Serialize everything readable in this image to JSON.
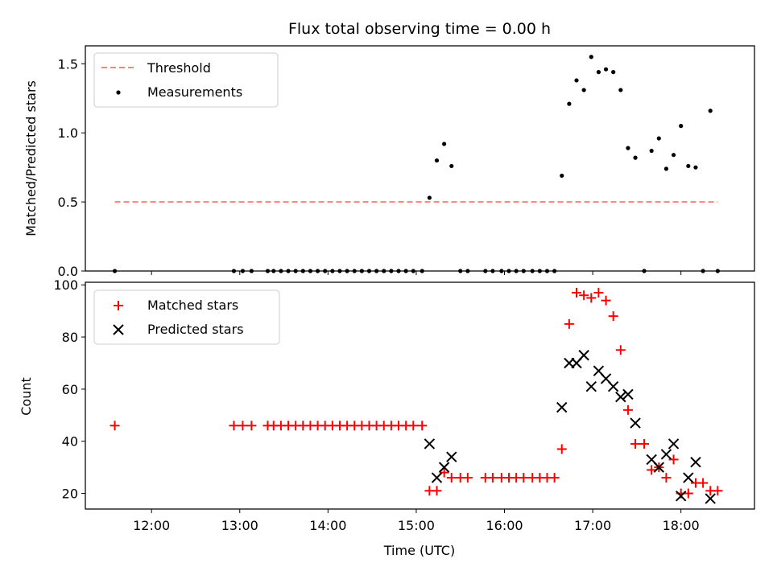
{
  "chart_data": [
    {
      "type": "scatter",
      "title": "Flux total observing time = 0.00 h",
      "xlabel": "",
      "ylabel": "Matched/Predicted stars",
      "x_unit": "hours (UTC)",
      "xlim": [
        "11:15",
        "18:50"
      ],
      "ylim": [
        0,
        1.63
      ],
      "xticks": [
        "12:00",
        "13:00",
        "14:00",
        "15:00",
        "16:00",
        "17:00",
        "18:00"
      ],
      "yticks": [
        "0.0",
        "0.5",
        "1.0",
        "1.5"
      ],
      "legend_position": "upper left",
      "threshold": {
        "name": "Threshold",
        "value": 0.5,
        "x_range": [
          "11:35",
          "18:25"
        ],
        "style": "dashed",
        "color": "#ff7f7f"
      },
      "series": [
        {
          "name": "Measurements",
          "color": "#000000",
          "marker": "dot",
          "points": [
            [
              "11:35",
              0.0
            ],
            [
              "12:56",
              0.0
            ],
            [
              "13:02",
              0.0
            ],
            [
              "13:08",
              0.0
            ],
            [
              "13:19",
              0.0
            ],
            [
              "13:23",
              0.0
            ],
            [
              "13:28",
              0.0
            ],
            [
              "13:33",
              0.0
            ],
            [
              "13:38",
              0.0
            ],
            [
              "13:43",
              0.0
            ],
            [
              "13:48",
              0.0
            ],
            [
              "13:53",
              0.0
            ],
            [
              "13:58",
              0.0
            ],
            [
              "14:03",
              0.0
            ],
            [
              "14:08",
              0.0
            ],
            [
              "14:13",
              0.0
            ],
            [
              "14:18",
              0.0
            ],
            [
              "14:23",
              0.0
            ],
            [
              "14:28",
              0.0
            ],
            [
              "14:33",
              0.0
            ],
            [
              "14:38",
              0.0
            ],
            [
              "14:43",
              0.0
            ],
            [
              "14:48",
              0.0
            ],
            [
              "14:53",
              0.0
            ],
            [
              "14:58",
              0.0
            ],
            [
              "15:04",
              0.0
            ],
            [
              "15:09",
              0.53
            ],
            [
              "15:14",
              0.8
            ],
            [
              "15:19",
              0.92
            ],
            [
              "15:24",
              0.76
            ],
            [
              "15:30",
              0.0
            ],
            [
              "15:35",
              0.0
            ],
            [
              "15:47",
              0.0
            ],
            [
              "15:52",
              0.0
            ],
            [
              "15:58",
              0.0
            ],
            [
              "16:03",
              0.0
            ],
            [
              "16:08",
              0.0
            ],
            [
              "16:13",
              0.0
            ],
            [
              "16:19",
              0.0
            ],
            [
              "16:24",
              0.0
            ],
            [
              "16:29",
              0.0
            ],
            [
              "16:34",
              0.0
            ],
            [
              "16:39",
              0.69
            ],
            [
              "16:44",
              1.21
            ],
            [
              "16:49",
              1.38
            ],
            [
              "16:54",
              1.31
            ],
            [
              "16:59",
              1.55
            ],
            [
              "17:04",
              1.44
            ],
            [
              "17:09",
              1.46
            ],
            [
              "17:14",
              1.44
            ],
            [
              "17:19",
              1.31
            ],
            [
              "17:24",
              0.89
            ],
            [
              "17:29",
              0.82
            ],
            [
              "17:35",
              0.0
            ],
            [
              "17:40",
              0.87
            ],
            [
              "17:45",
              0.96
            ],
            [
              "17:50",
              0.74
            ],
            [
              "17:55",
              0.84
            ],
            [
              "18:00",
              1.05
            ],
            [
              "18:05",
              0.76
            ],
            [
              "18:10",
              0.75
            ],
            [
              "18:15",
              0.0
            ],
            [
              "18:20",
              1.16
            ],
            [
              "18:25",
              0.0
            ]
          ]
        }
      ]
    },
    {
      "type": "scatter",
      "title": "",
      "xlabel": "Time (UTC)",
      "ylabel": "Count",
      "x_unit": "hours (UTC)",
      "xlim": [
        "11:15",
        "18:50"
      ],
      "ylim": [
        14,
        101
      ],
      "xticks": [
        "12:00",
        "13:00",
        "14:00",
        "15:00",
        "16:00",
        "17:00",
        "18:00"
      ],
      "yticks": [
        "20",
        "40",
        "60",
        "80",
        "100"
      ],
      "legend_position": "upper left",
      "series": [
        {
          "name": "Matched stars",
          "color": "#ff0000",
          "marker": "plus",
          "points": [
            [
              "11:35",
              46
            ],
            [
              "12:56",
              46
            ],
            [
              "13:02",
              46
            ],
            [
              "13:08",
              46
            ],
            [
              "13:19",
              46
            ],
            [
              "13:23",
              46
            ],
            [
              "13:28",
              46
            ],
            [
              "13:33",
              46
            ],
            [
              "13:38",
              46
            ],
            [
              "13:43",
              46
            ],
            [
              "13:48",
              46
            ],
            [
              "13:53",
              46
            ],
            [
              "13:58",
              46
            ],
            [
              "14:03",
              46
            ],
            [
              "14:08",
              46
            ],
            [
              "14:13",
              46
            ],
            [
              "14:18",
              46
            ],
            [
              "14:23",
              46
            ],
            [
              "14:28",
              46
            ],
            [
              "14:33",
              46
            ],
            [
              "14:38",
              46
            ],
            [
              "14:43",
              46
            ],
            [
              "14:48",
              46
            ],
            [
              "14:53",
              46
            ],
            [
              "14:58",
              46
            ],
            [
              "15:04",
              46
            ],
            [
              "15:09",
              21
            ],
            [
              "15:14",
              21
            ],
            [
              "15:19",
              28
            ],
            [
              "15:24",
              26
            ],
            [
              "15:30",
              26
            ],
            [
              "15:35",
              26
            ],
            [
              "15:47",
              26
            ],
            [
              "15:52",
              26
            ],
            [
              "15:58",
              26
            ],
            [
              "16:03",
              26
            ],
            [
              "16:08",
              26
            ],
            [
              "16:13",
              26
            ],
            [
              "16:19",
              26
            ],
            [
              "16:24",
              26
            ],
            [
              "16:29",
              26
            ],
            [
              "16:34",
              26
            ],
            [
              "16:39",
              37
            ],
            [
              "16:44",
              85
            ],
            [
              "16:49",
              97
            ],
            [
              "16:54",
              96
            ],
            [
              "16:59",
              95
            ],
            [
              "17:04",
              97
            ],
            [
              "17:09",
              94
            ],
            [
              "17:14",
              88
            ],
            [
              "17:19",
              75
            ],
            [
              "17:24",
              52
            ],
            [
              "17:29",
              39
            ],
            [
              "17:35",
              39
            ],
            [
              "17:40",
              29
            ],
            [
              "17:45",
              30
            ],
            [
              "17:50",
              26
            ],
            [
              "17:55",
              33
            ],
            [
              "18:00",
              20
            ],
            [
              "18:05",
              20
            ],
            [
              "18:10",
              24
            ],
            [
              "18:15",
              24
            ],
            [
              "18:20",
              21
            ],
            [
              "18:25",
              21
            ]
          ]
        },
        {
          "name": "Predicted stars",
          "color": "#000000",
          "marker": "x",
          "points": [
            [
              "15:09",
              39
            ],
            [
              "15:14",
              26
            ],
            [
              "15:19",
              30
            ],
            [
              "15:24",
              34
            ],
            [
              "16:39",
              53
            ],
            [
              "16:44",
              70
            ],
            [
              "16:49",
              70
            ],
            [
              "16:54",
              73
            ],
            [
              "16:59",
              61
            ],
            [
              "17:04",
              67
            ],
            [
              "17:09",
              64
            ],
            [
              "17:14",
              61
            ],
            [
              "17:19",
              57
            ],
            [
              "17:24",
              58
            ],
            [
              "17:29",
              47
            ],
            [
              "17:40",
              33
            ],
            [
              "17:45",
              30
            ],
            [
              "17:50",
              35
            ],
            [
              "17:55",
              39
            ],
            [
              "18:00",
              19
            ],
            [
              "18:05",
              26
            ],
            [
              "18:10",
              32
            ],
            [
              "18:20",
              18
            ]
          ]
        }
      ]
    }
  ]
}
